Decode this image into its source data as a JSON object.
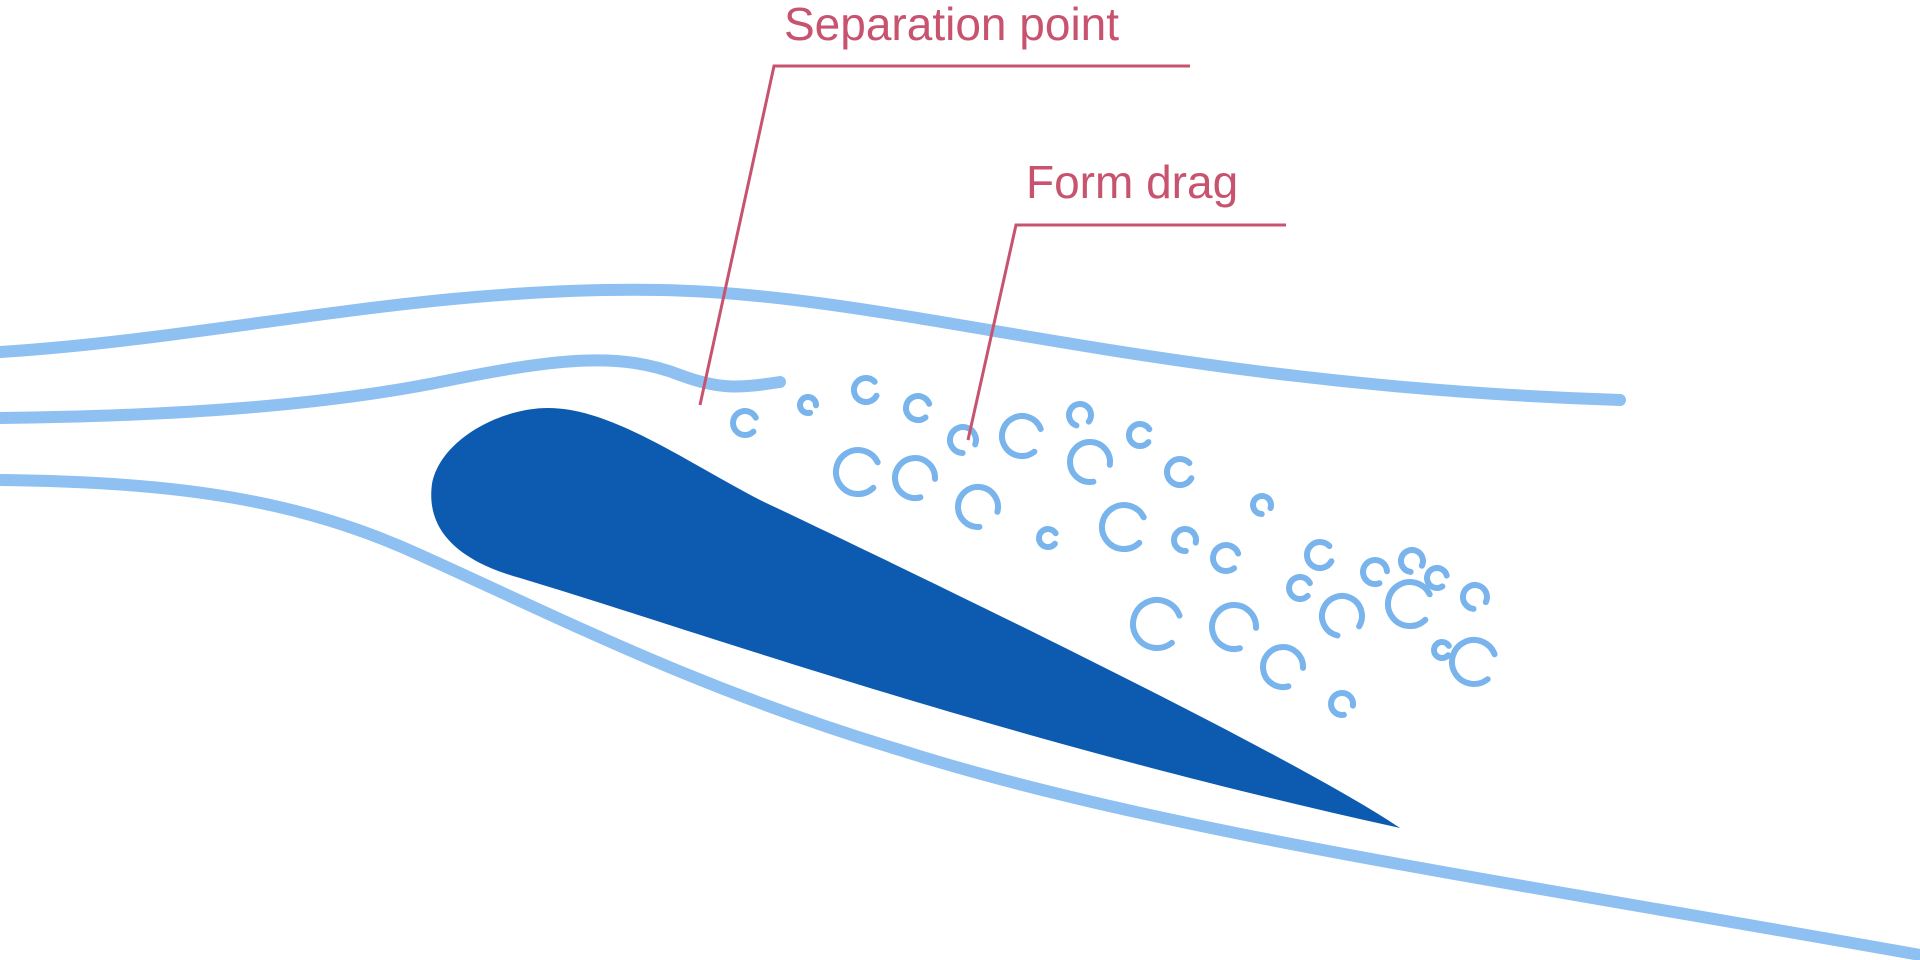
{
  "labels": {
    "separation_point": "Separation point",
    "form_drag": "Form drag"
  },
  "colors": {
    "background": "#ffffff",
    "streamline": "#8ec0f1",
    "airfoil": "#0c5bb1",
    "eddy": "#79b4ec",
    "annotation": "#c7536f"
  },
  "icons": {
    "eddy": "swirl-eddy-icon"
  }
}
